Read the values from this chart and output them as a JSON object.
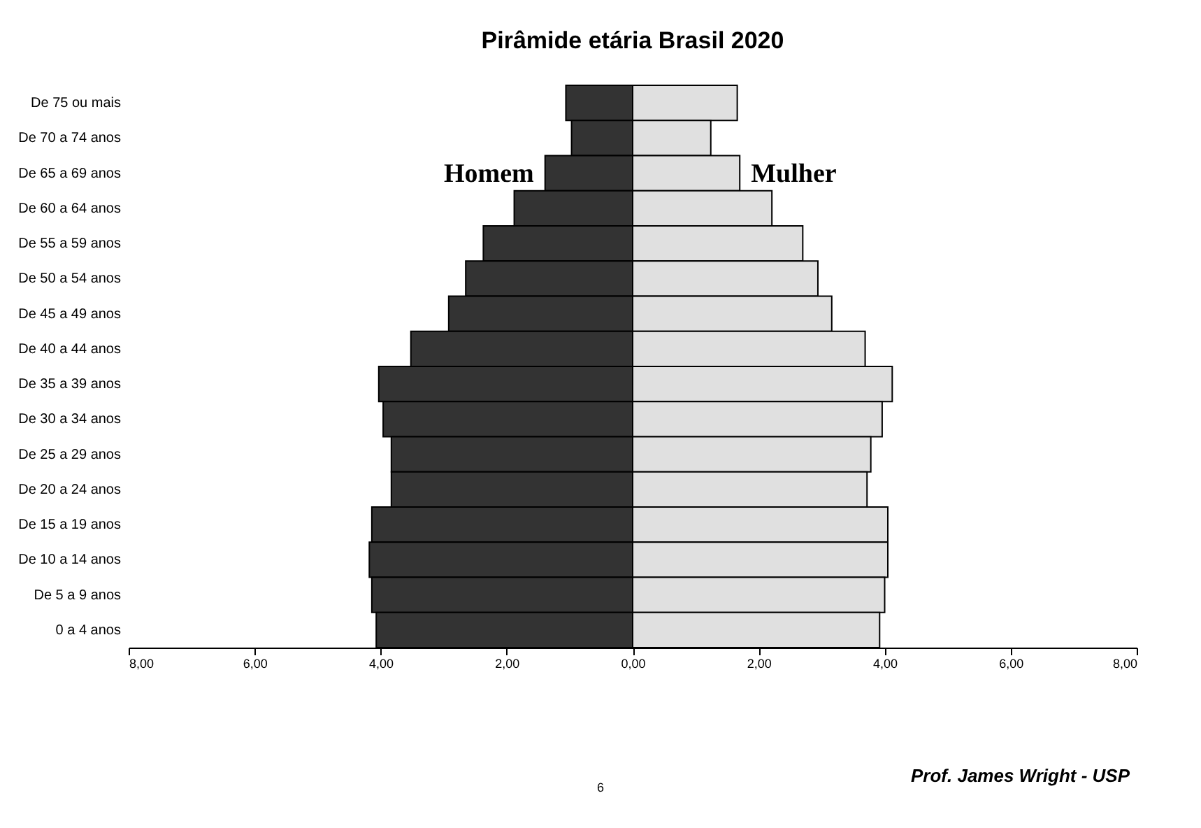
{
  "chart_data": {
    "type": "bar",
    "orientation": "horizontal",
    "title": "Pirâmide etária Brasil 2020",
    "categories": [
      "De 75 ou mais",
      "De 70 a 74 anos",
      "De 65 a 69 anos",
      "De 60 a 64 anos",
      "De 55 a 59 anos",
      "De 50 a 54 anos",
      "De 45 a 49 anos",
      "De 40 a 44 anos",
      "De 35 a 39 anos",
      "De 30 a 34 anos",
      "De 25 a 29 anos",
      "De 20 a 24 anos",
      "De 15 a 19 anos",
      "De 10 a 14 anos",
      "De 5 a 9 anos",
      "0 a 4 anos"
    ],
    "series": [
      {
        "name": "Homem",
        "color": "#333333",
        "values": [
          -1.06,
          -0.97,
          -1.39,
          -1.88,
          -2.37,
          -2.65,
          -2.92,
          -3.52,
          -4.03,
          -3.96,
          -3.83,
          -3.83,
          -4.14,
          -4.18,
          -4.14,
          -4.07
        ]
      },
      {
        "name": "Mulher",
        "color": "#e0e0e0",
        "values": [
          1.66,
          1.24,
          1.7,
          2.21,
          2.7,
          2.94,
          3.16,
          3.69,
          4.12,
          3.96,
          3.78,
          3.72,
          4.05,
          4.05,
          4.0,
          3.92
        ]
      }
    ],
    "xlim": [
      -8,
      8
    ],
    "xticks": [
      {
        "value": -8,
        "label": "8,00"
      },
      {
        "value": -6,
        "label": "6,00"
      },
      {
        "value": -4,
        "label": "4,00"
      },
      {
        "value": -2,
        "label": "2,00"
      },
      {
        "value": 0,
        "label": "0,00"
      },
      {
        "value": 2,
        "label": "2,00"
      },
      {
        "value": 4,
        "label": "4,00"
      },
      {
        "value": 6,
        "label": "6,00"
      },
      {
        "value": 8,
        "label": "8,00"
      }
    ],
    "stacked": true,
    "grid": false,
    "legend": false,
    "annotations": [
      "6",
      "Prof. James Wright  - USP"
    ]
  }
}
